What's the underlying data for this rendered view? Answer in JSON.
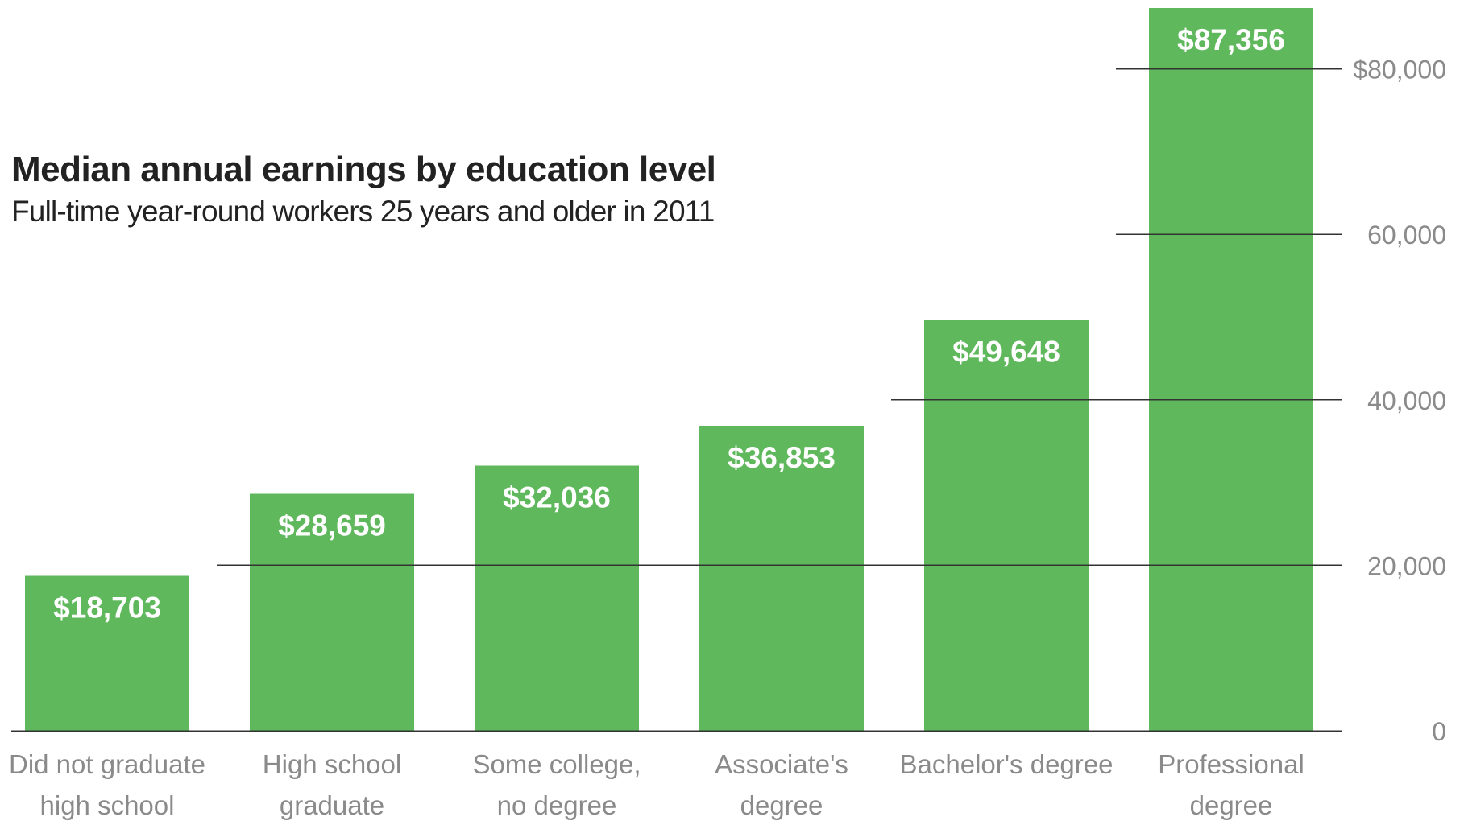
{
  "chart_data": {
    "type": "bar",
    "title": "Median annual earnings by education level",
    "subtitle": "Full-time year-round workers 25 years and older in 2011",
    "xlabel": "",
    "ylabel": "",
    "categories": [
      [
        "Did not graduate",
        "high school"
      ],
      [
        "High school",
        "graduate"
      ],
      [
        "Some college,",
        "no degree"
      ],
      [
        "Associate's",
        "degree"
      ],
      [
        "Bachelor's degree"
      ],
      [
        "Professional",
        "degree"
      ]
    ],
    "values": [
      18703,
      28659,
      32036,
      36853,
      49648,
      87356
    ],
    "data_labels": [
      "$18,703",
      "$28,659",
      "$32,036",
      "$36,853",
      "$49,648",
      "$87,356"
    ],
    "ylim": [
      0,
      87356
    ],
    "yticks": [
      0,
      20000,
      40000,
      60000,
      80000
    ],
    "ytick_labels": [
      "0",
      "20,000",
      "40,000",
      "60,000",
      "$80,000"
    ],
    "y_axis_position": "right",
    "grid": true,
    "legend": "none",
    "colors": {
      "bar": "#5fb85c",
      "bar_label": "#ffffff",
      "gridline": "#333333",
      "tick_label": "#8a8a8a",
      "category_label": "#8a8a8a",
      "title": "#222222"
    }
  }
}
